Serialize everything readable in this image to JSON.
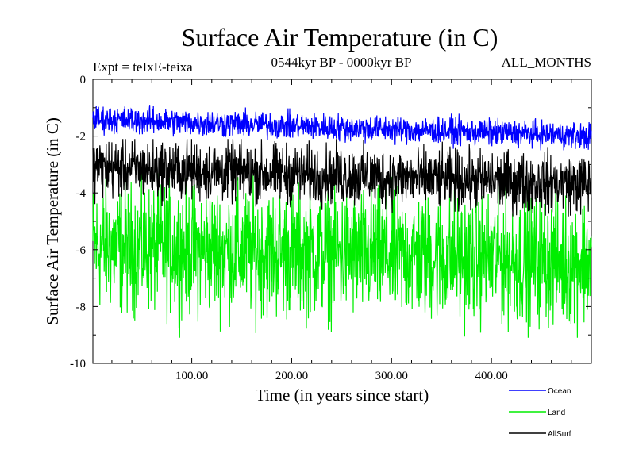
{
  "chart_data": {
    "type": "line",
    "title": "Surface Air Temperature (in C)",
    "subtitle_left": "Expt = teIxE-teixa",
    "subtitle_center": "0544kyr BP - 0000kyr BP",
    "subtitle_right": "ALL_MONTHS",
    "xlabel": "Time (in years since start)",
    "ylabel": "Surface Air Temperature (in C)",
    "xlim": [
      1,
      500
    ],
    "ylim": [
      -10,
      0
    ],
    "xticks": [
      100,
      200,
      300,
      400
    ],
    "xtick_labels": [
      "100.00",
      "200.00",
      "300.00",
      "400.00"
    ],
    "yticks": [
      0,
      -2,
      -4,
      -6,
      -8,
      -10
    ],
    "ytick_labels": [
      "0",
      "-2",
      "-4",
      "-6",
      "-8",
      "-10"
    ],
    "grid": false,
    "legend_position": "bottom-right",
    "series": [
      {
        "name": "Ocean",
        "color": "#0000ff",
        "mean_start": -1.4,
        "mean_end": -2.0,
        "noise": 0.55,
        "max": -0.5,
        "min": -2.5
      },
      {
        "name": "Land",
        "color": "#00ee00",
        "mean_start": -5.9,
        "mean_end": -6.4,
        "noise": 2.6,
        "max": -3.2,
        "min": -9.1
      },
      {
        "name": "AllSurf",
        "color": "#000000",
        "mean_start": -3.1,
        "mean_end": -3.7,
        "noise": 1.2,
        "max": -2.1,
        "min": -4.9
      }
    ]
  }
}
